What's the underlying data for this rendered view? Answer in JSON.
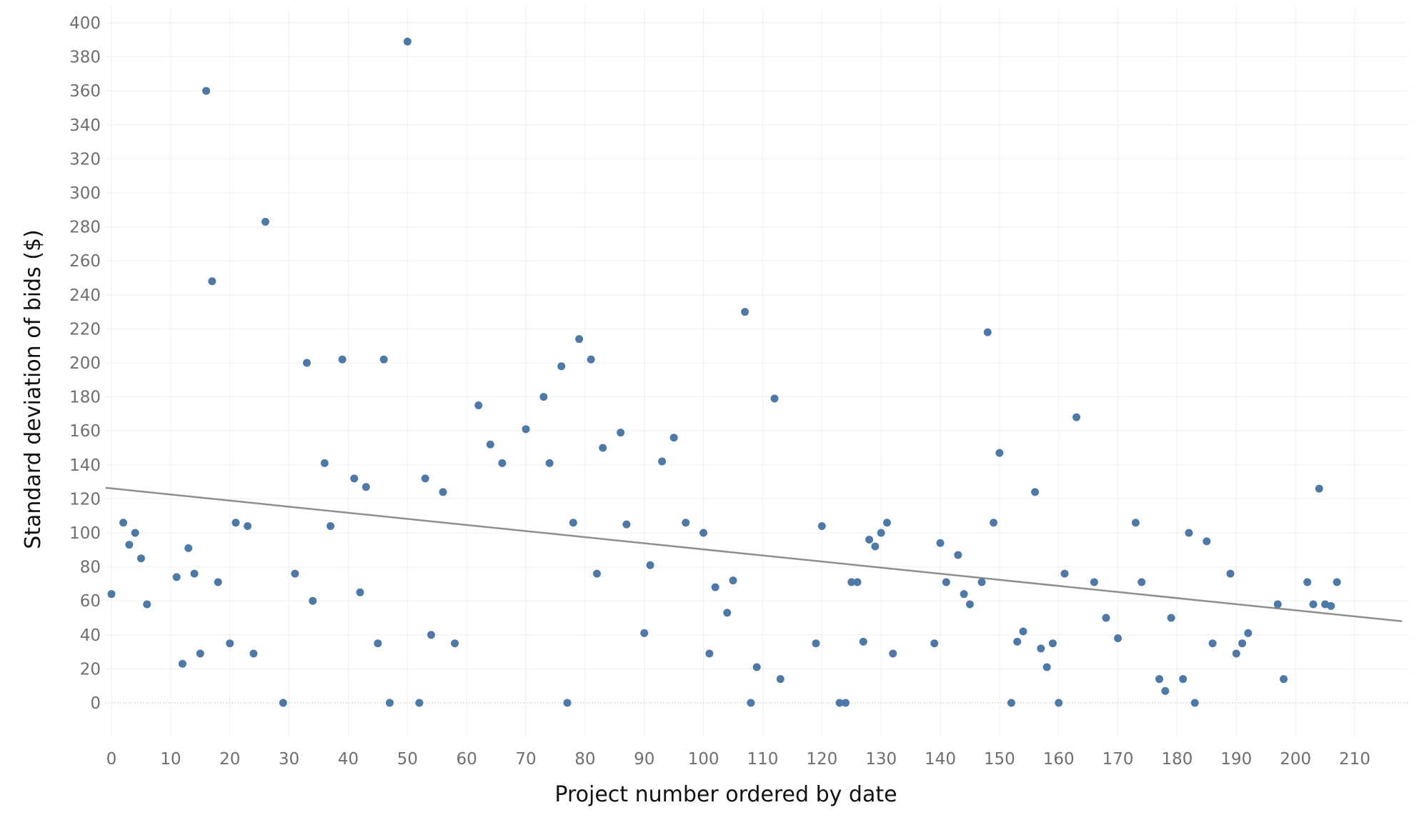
{
  "chart_data": {
    "type": "scatter",
    "title": "",
    "xlabel": "Project number ordered by date",
    "ylabel": "Standard deviation of bids ($)",
    "xlim": [
      -1,
      218
    ],
    "ylim": [
      -20,
      410
    ],
    "x_ticks": [
      0,
      10,
      20,
      30,
      40,
      50,
      60,
      70,
      80,
      90,
      100,
      110,
      120,
      130,
      140,
      150,
      160,
      170,
      180,
      190,
      200,
      210
    ],
    "y_ticks": [
      0,
      20,
      40,
      60,
      80,
      100,
      120,
      140,
      160,
      180,
      200,
      220,
      240,
      260,
      280,
      300,
      320,
      340,
      360,
      380,
      400
    ],
    "grid": true,
    "legend": "none",
    "point_color": "#4e79a7",
    "trend_color": "#8e8e8e",
    "series": [
      {
        "points": [
          [
            0,
            64
          ],
          [
            2,
            106
          ],
          [
            3,
            93
          ],
          [
            4,
            100
          ],
          [
            5,
            85
          ],
          [
            6,
            58
          ],
          [
            11,
            74
          ],
          [
            12,
            23
          ],
          [
            13,
            91
          ],
          [
            14,
            76
          ],
          [
            15,
            29
          ],
          [
            16,
            360
          ],
          [
            17,
            248
          ],
          [
            18,
            71
          ],
          [
            20,
            35
          ],
          [
            21,
            106
          ],
          [
            23,
            104
          ],
          [
            24,
            29
          ],
          [
            26,
            283
          ],
          [
            29,
            0
          ],
          [
            31,
            76
          ],
          [
            33,
            200
          ],
          [
            34,
            60
          ],
          [
            36,
            141
          ],
          [
            37,
            104
          ],
          [
            39,
            202
          ],
          [
            41,
            132
          ],
          [
            42,
            65
          ],
          [
            43,
            127
          ],
          [
            45,
            35
          ],
          [
            46,
            202
          ],
          [
            47,
            0
          ],
          [
            50,
            389
          ],
          [
            52,
            0
          ],
          [
            53,
            132
          ],
          [
            54,
            40
          ],
          [
            56,
            124
          ],
          [
            58,
            35
          ],
          [
            62,
            175
          ],
          [
            64,
            152
          ],
          [
            66,
            141
          ],
          [
            70,
            161
          ],
          [
            73,
            180
          ],
          [
            74,
            141
          ],
          [
            76,
            198
          ],
          [
            77,
            0
          ],
          [
            78,
            106
          ],
          [
            79,
            214
          ],
          [
            81,
            202
          ],
          [
            82,
            76
          ],
          [
            83,
            150
          ],
          [
            86,
            159
          ],
          [
            87,
            105
          ],
          [
            90,
            41
          ],
          [
            91,
            81
          ],
          [
            93,
            142
          ],
          [
            95,
            156
          ],
          [
            97,
            106
          ],
          [
            100,
            100
          ],
          [
            101,
            29
          ],
          [
            102,
            68
          ],
          [
            104,
            53
          ],
          [
            105,
            72
          ],
          [
            107,
            230
          ],
          [
            108,
            0
          ],
          [
            109,
            21
          ],
          [
            112,
            179
          ],
          [
            113,
            14
          ],
          [
            119,
            35
          ],
          [
            120,
            104
          ],
          [
            123,
            0
          ],
          [
            124,
            0
          ],
          [
            125,
            71
          ],
          [
            126,
            71
          ],
          [
            127,
            36
          ],
          [
            128,
            96
          ],
          [
            129,
            92
          ],
          [
            130,
            100
          ],
          [
            131,
            106
          ],
          [
            132,
            29
          ],
          [
            139,
            35
          ],
          [
            140,
            94
          ],
          [
            141,
            71
          ],
          [
            143,
            87
          ],
          [
            144,
            64
          ],
          [
            145,
            58
          ],
          [
            147,
            71
          ],
          [
            148,
            218
          ],
          [
            149,
            106
          ],
          [
            150,
            147
          ],
          [
            152,
            0
          ],
          [
            153,
            36
          ],
          [
            154,
            42
          ],
          [
            156,
            124
          ],
          [
            157,
            32
          ],
          [
            158,
            21
          ],
          [
            159,
            35
          ],
          [
            160,
            0
          ],
          [
            161,
            76
          ],
          [
            163,
            168
          ],
          [
            166,
            71
          ],
          [
            168,
            50
          ],
          [
            170,
            38
          ],
          [
            173,
            106
          ],
          [
            174,
            71
          ],
          [
            177,
            14
          ],
          [
            178,
            7
          ],
          [
            179,
            50
          ],
          [
            181,
            14
          ],
          [
            182,
            100
          ],
          [
            183,
            0
          ],
          [
            185,
            95
          ],
          [
            186,
            35
          ],
          [
            189,
            76
          ],
          [
            190,
            29
          ],
          [
            191,
            35
          ],
          [
            192,
            41
          ],
          [
            197,
            58
          ],
          [
            198,
            14
          ],
          [
            202,
            71
          ],
          [
            203,
            58
          ],
          [
            204,
            126
          ],
          [
            205,
            58
          ],
          [
            206,
            57
          ],
          [
            207,
            71
          ]
        ]
      }
    ],
    "trendline": {
      "x": [
        -1,
        218
      ],
      "y": [
        126.5,
        48
      ]
    }
  }
}
